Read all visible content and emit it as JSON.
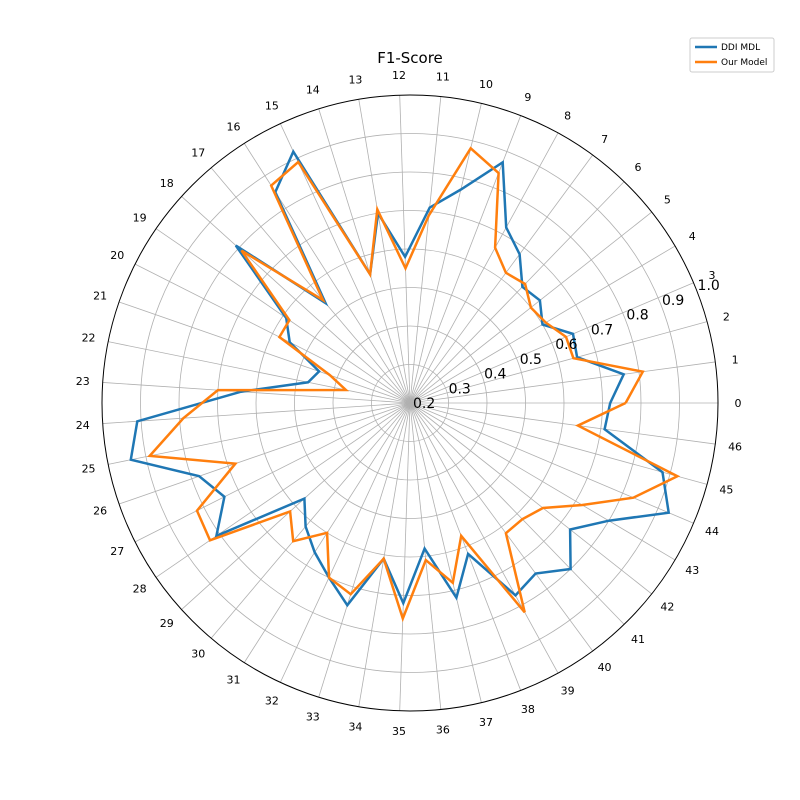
{
  "chart_data": {
    "type": "line",
    "subtype": "radar",
    "title": "F1-Score",
    "categories": [
      "0",
      "1",
      "2",
      "3",
      "4",
      "5",
      "6",
      "7",
      "8",
      "9",
      "10",
      "11",
      "12",
      "13",
      "14",
      "15",
      "16",
      "17",
      "18",
      "19",
      "20",
      "21",
      "22",
      "23",
      "24",
      "25",
      "26",
      "27",
      "28",
      "29",
      "30",
      "31",
      "32",
      "33",
      "34",
      "35",
      "36",
      "37",
      "38",
      "39",
      "40",
      "41",
      "42",
      "43",
      "44",
      "45",
      "46"
    ],
    "r_ticks": [
      0.2,
      0.3,
      0.4,
      0.5,
      0.6,
      0.7,
      0.8,
      0.9,
      1.0
    ],
    "r_tick_labels": [
      "0.2",
      "0.3",
      "0.4",
      "0.5",
      "0.6",
      "0.7",
      "0.8",
      "0.9",
      "1.0"
    ],
    "rlim": [
      0.2,
      1.0
    ],
    "grid": true,
    "legend_position": "top-right",
    "series": [
      {
        "name": "DDI MDL",
        "color": "#1f77b4",
        "values": [
          0.72,
          0.76,
          0.65,
          0.66,
          0.6,
          0.63,
          0.62,
          0.68,
          0.72,
          0.87,
          0.77,
          0.71,
          0.58,
          0.7,
          0.55,
          0.92,
          0.85,
          0.54,
          0.81,
          0.59,
          0.55,
          0.45,
          0.47,
          0.64,
          0.91,
          0.94,
          0.78,
          0.74,
          0.81,
          0.57,
          0.62,
          0.66,
          0.7,
          0.75,
          0.61,
          0.72,
          0.58,
          0.72,
          0.62,
          0.77,
          0.75,
          0.8,
          0.73,
          0.8,
          0.93,
          0.88,
          0.71
        ]
      },
      {
        "name": "Our Model",
        "color": "#ff7f0e",
        "values": [
          0.76,
          0.81,
          0.64,
          0.64,
          0.61,
          0.6,
          0.63,
          0.62,
          0.66,
          0.84,
          0.88,
          0.69,
          0.55,
          0.71,
          0.55,
          0.89,
          0.87,
          0.55,
          0.79,
          0.58,
          0.58,
          0.42,
          0.37,
          0.7,
          0.79,
          0.89,
          0.68,
          0.82,
          0.83,
          0.62,
          0.67,
          0.6,
          0.7,
          0.72,
          0.61,
          0.76,
          0.61,
          0.68,
          0.57,
          0.82,
          0.62,
          0.62,
          0.64,
          0.72,
          0.83,
          0.92,
          0.64
        ]
      }
    ]
  }
}
